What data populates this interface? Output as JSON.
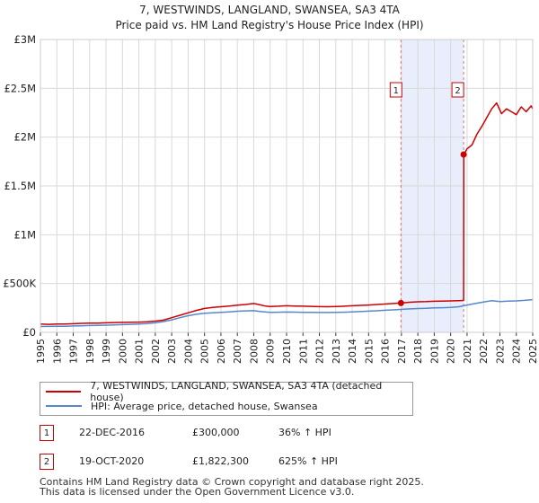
{
  "chart_data": {
    "type": "line",
    "title": "7, WESTWINDS, LANGLAND, SWANSEA, SA3 4TA",
    "subtitle": "Price paid vs. HM Land Registry's House Price Index (HPI)",
    "xlim": [
      1995,
      2025
    ],
    "ylim": [
      0,
      3000000
    ],
    "y_ticks": [
      {
        "value": 0,
        "label": "£0"
      },
      {
        "value": 500000,
        "label": "£500K"
      },
      {
        "value": 1000000,
        "label": "£1M"
      },
      {
        "value": 1500000,
        "label": "£1.5M"
      },
      {
        "value": 2000000,
        "label": "£2M"
      },
      {
        "value": 2500000,
        "label": "£2.5M"
      },
      {
        "value": 3000000,
        "label": "£3M"
      }
    ],
    "x_ticks": [
      "1995",
      "1996",
      "1997",
      "1998",
      "1999",
      "2000",
      "2001",
      "2002",
      "2003",
      "2004",
      "2005",
      "2006",
      "2007",
      "2008",
      "2009",
      "2010",
      "2011",
      "2012",
      "2013",
      "2014",
      "2015",
      "2016",
      "2017",
      "2018",
      "2019",
      "2020",
      "2021",
      "2022",
      "2023",
      "2024",
      "2025"
    ],
    "grid": true,
    "highlight_region": [
      2016.97,
      2020.8
    ],
    "series": [
      {
        "name": "7, WESTWINDS, LANGLAND, SWANSEA, SA3 4TA (detached house)",
        "color": "#cc0000",
        "x": [
          1995.0,
          1995.5,
          1996.0,
          1996.5,
          1997.0,
          1997.5,
          1998.0,
          1998.5,
          1999.0,
          1999.5,
          2000.0,
          2000.5,
          2001.0,
          2001.5,
          2002.0,
          2002.5,
          2003.0,
          2003.5,
          2004.0,
          2004.5,
          2005.0,
          2005.5,
          2006.0,
          2006.5,
          2007.0,
          2007.5,
          2008.0,
          2008.3,
          2008.7,
          2009.0,
          2009.5,
          2010.0,
          2010.5,
          2011.0,
          2011.5,
          2012.0,
          2012.5,
          2013.0,
          2013.5,
          2014.0,
          2014.5,
          2015.0,
          2015.5,
          2016.0,
          2016.5,
          2016.97,
          2017.5,
          2018.0,
          2018.5,
          2019.0,
          2019.5,
          2020.0,
          2020.5,
          2020.79,
          2020.8,
          2021.0,
          2021.3,
          2021.6,
          2021.9,
          2022.2,
          2022.5,
          2022.8,
          2023.1,
          2023.4,
          2023.7,
          2024.0,
          2024.3,
          2024.6,
          2024.9,
          2025.0
        ],
        "y": [
          85000,
          82000,
          86000,
          85000,
          88000,
          92000,
          95000,
          94000,
          98000,
          100000,
          102000,
          103000,
          105000,
          108000,
          115000,
          125000,
          150000,
          175000,
          200000,
          225000,
          245000,
          255000,
          262000,
          270000,
          278000,
          285000,
          295000,
          285000,
          270000,
          265000,
          268000,
          272000,
          270000,
          268000,
          266000,
          263000,
          262000,
          264000,
          268000,
          272000,
          276000,
          280000,
          285000,
          290000,
          295000,
          300000,
          308000,
          313000,
          315000,
          318000,
          320000,
          322000,
          325000,
          327000,
          1822300,
          1880000,
          1920000,
          2030000,
          2110000,
          2200000,
          2290000,
          2350000,
          2240000,
          2290000,
          2260000,
          2230000,
          2310000,
          2260000,
          2320000,
          2290000
        ]
      },
      {
        "name": "HPI: Average price, detached house, Swansea",
        "color": "#5588cc",
        "x": [
          1995.0,
          1995.5,
          1996.0,
          1996.5,
          1997.0,
          1997.5,
          1998.0,
          1998.5,
          1999.0,
          1999.5,
          2000.0,
          2000.5,
          2001.0,
          2001.5,
          2002.0,
          2002.5,
          2003.0,
          2003.5,
          2004.0,
          2004.5,
          2005.0,
          2005.5,
          2006.0,
          2006.5,
          2007.0,
          2007.5,
          2008.0,
          2008.5,
          2009.0,
          2009.5,
          2010.0,
          2010.5,
          2011.0,
          2011.5,
          2012.0,
          2012.5,
          2013.0,
          2013.5,
          2014.0,
          2014.5,
          2015.0,
          2015.5,
          2016.0,
          2016.5,
          2017.0,
          2017.5,
          2018.0,
          2018.5,
          2019.0,
          2019.5,
          2020.0,
          2020.5,
          2021.0,
          2021.5,
          2022.0,
          2022.5,
          2023.0,
          2023.5,
          2024.0,
          2024.5,
          2025.0
        ],
        "y": [
          60000,
          61000,
          62000,
          63000,
          65000,
          67000,
          70000,
          72000,
          74000,
          76000,
          79000,
          82000,
          86000,
          90000,
          98000,
          110000,
          128000,
          150000,
          170000,
          185000,
          195000,
          200000,
          205000,
          210000,
          216000,
          220000,
          222000,
          212000,
          205000,
          206000,
          208000,
          207000,
          205000,
          204000,
          203000,
          203000,
          204000,
          206000,
          209000,
          213000,
          217000,
          221000,
          226000,
          230000,
          236000,
          240000,
          244000,
          247000,
          250000,
          252000,
          255000,
          262000,
          280000,
          295000,
          310000,
          325000,
          315000,
          320000,
          322000,
          328000,
          335000
        ]
      }
    ],
    "annotations": [
      {
        "label": "1",
        "x": 2016.97,
        "y": 300000
      },
      {
        "label": "2",
        "x": 2020.79,
        "y": 1822300
      }
    ]
  },
  "transactions": [
    {
      "num": "1",
      "date": "22-DEC-2016",
      "price": "£300,000",
      "hpi": "36% ↑ HPI"
    },
    {
      "num": "2",
      "date": "19-OCT-2020",
      "price": "£1,822,300",
      "hpi": "625% ↑ HPI"
    }
  ],
  "footer": {
    "line1": "Contains HM Land Registry data © Crown copyright and database right 2025.",
    "line2": "This data is licensed under the Open Government Licence v3.0."
  }
}
